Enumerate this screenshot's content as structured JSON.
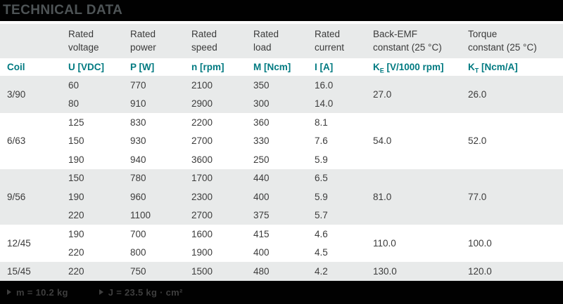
{
  "title": "TECHNICAL DATA",
  "colors": {
    "accent_teal": "#007a81",
    "stripe_gray": "#e8eaea",
    "bar_black": "#010101",
    "bar_text_gray": "#4e5456"
  },
  "table": {
    "group_headers": [
      "",
      "Rated\nvoltage",
      "Rated\npower",
      "Rated\nspeed",
      "Rated\nload",
      "Rated\ncurrent",
      "Back-EMF\nconstant (25 °C)",
      "Torque\nconstant (25 °C)"
    ],
    "unit_row": {
      "coil": "Coil",
      "voltage": "U [VDC]",
      "power": "P [W]",
      "speed": "n [rpm]",
      "load": "M [Ncm]",
      "current": "I [A]",
      "ke_symbol": "K",
      "ke_sub": "E",
      "ke_unit": " [V/1000 rpm]",
      "kt_symbol": "K",
      "kt_sub": "T",
      "kt_unit": " [Ncm/A]"
    },
    "groups": [
      {
        "coil": "3/90",
        "rows": [
          [
            "60",
            "770",
            "2100",
            "350",
            "16.0"
          ],
          [
            "80",
            "910",
            "2900",
            "300",
            "14.0"
          ]
        ],
        "ke": "27.0",
        "kt": "26.0"
      },
      {
        "coil": "6/63",
        "rows": [
          [
            "125",
            "830",
            "2200",
            "360",
            "8.1"
          ],
          [
            "150",
            "930",
            "2700",
            "330",
            "7.6"
          ],
          [
            "190",
            "940",
            "3600",
            "250",
            "5.9"
          ]
        ],
        "ke": "54.0",
        "kt": "52.0"
      },
      {
        "coil": "9/56",
        "rows": [
          [
            "150",
            "780",
            "1700",
            "440",
            "6.5"
          ],
          [
            "190",
            "960",
            "2300",
            "400",
            "5.9"
          ],
          [
            "220",
            "1100",
            "2700",
            "375",
            "5.7"
          ]
        ],
        "ke": "81.0",
        "kt": "77.0"
      },
      {
        "coil": "12/45",
        "rows": [
          [
            "190",
            "700",
            "1600",
            "415",
            "4.6"
          ],
          [
            "220",
            "800",
            "1900",
            "400",
            "4.5"
          ]
        ],
        "ke": "110.0",
        "kt": "100.0"
      },
      {
        "coil": "15/45",
        "rows": [
          [
            "220",
            "750",
            "1500",
            "480",
            "4.2"
          ]
        ],
        "ke": "130.0",
        "kt": "120.0"
      }
    ]
  },
  "footer": {
    "items": [
      {
        "icon": "triangle-right",
        "label": "m = 10.2 kg"
      },
      {
        "icon": "triangle-right",
        "label": "J = 23.5 kg · cm²"
      }
    ]
  }
}
